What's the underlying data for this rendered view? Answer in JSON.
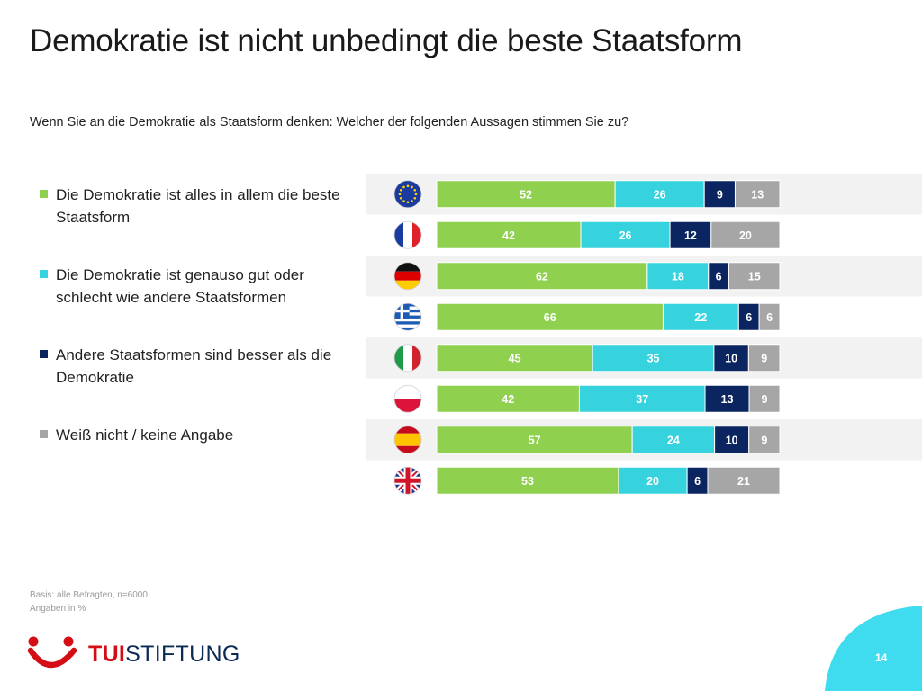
{
  "title": "Demokratie ist nicht unbedingt die beste Staatsform",
  "subtitle": "Wenn Sie an die Demokratie als Staatsform denken: Welcher der folgenden Aussagen stimmen Sie zu?",
  "colors": {
    "green": "#8fd14f",
    "cyan": "#36d2de",
    "navy": "#0b2561",
    "gray": "#a6a6a6",
    "row_band": "#f2f2f2",
    "tui_red": "#d40e14",
    "tui_navy": "#0b2b55",
    "corner_cyan": "#3fdcf0"
  },
  "chart_data": {
    "type": "bar",
    "orientation": "horizontal",
    "stacked": true,
    "unit": "%",
    "categories": [
      "EU",
      "Frankreich",
      "Deutschland",
      "Griechenland",
      "Italien",
      "Polen",
      "Spanien",
      "Großbritannien"
    ],
    "category_icons": [
      "eu-flag-icon",
      "france-flag-icon",
      "germany-flag-icon",
      "greece-flag-icon",
      "italy-flag-icon",
      "poland-flag-icon",
      "spain-flag-icon",
      "uk-flag-icon"
    ],
    "series": [
      {
        "name": "Die Demokratie ist alles in allem die beste Staatsform",
        "color": "#8fd14f",
        "values": [
          52,
          42,
          62,
          66,
          45,
          42,
          57,
          53
        ]
      },
      {
        "name": "Die Demokratie ist genauso gut oder schlecht wie andere Staatsformen",
        "color": "#36d2de",
        "values": [
          26,
          26,
          18,
          22,
          35,
          37,
          24,
          20
        ]
      },
      {
        "name": "Andere Staatsformen sind besser als die Demokratie",
        "color": "#0b2561",
        "values": [
          9,
          12,
          6,
          6,
          10,
          13,
          10,
          6
        ]
      },
      {
        "name": "Weiß nicht / keine Angabe",
        "color": "#a6a6a6",
        "values": [
          13,
          20,
          15,
          6,
          9,
          9,
          9,
          21
        ]
      }
    ],
    "legend_placement": "left",
    "xlim": [
      0,
      100
    ],
    "grid": false
  },
  "footnotes": [
    "Basis: alle Befragten, n=6000",
    "Angaben in %"
  ],
  "brand": {
    "tui": "TUI",
    "stiftung": "STIFTUNG"
  },
  "page_number": "14"
}
